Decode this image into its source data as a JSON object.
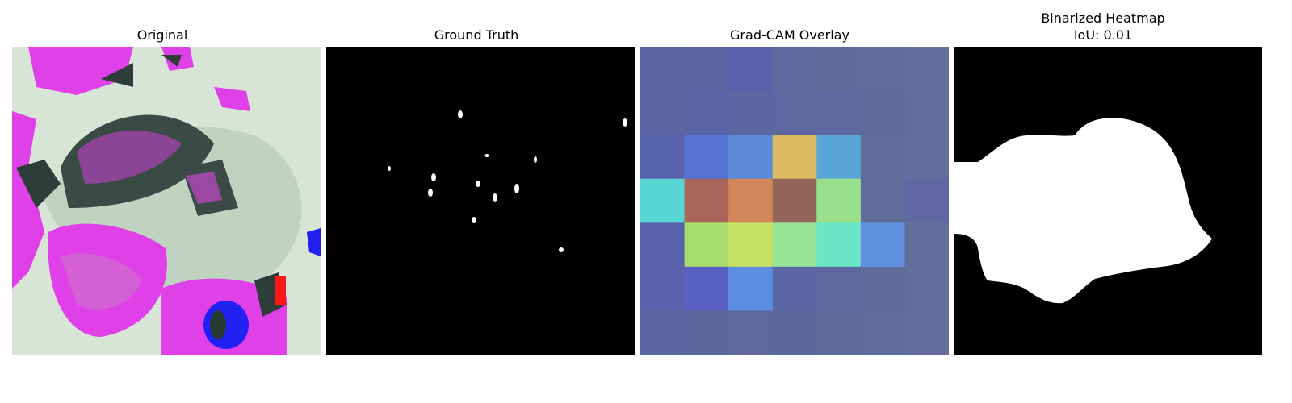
{
  "panels": [
    {
      "title": "Original"
    },
    {
      "title": "Ground Truth"
    },
    {
      "title": "Grad-CAM Overlay"
    },
    {
      "title_line1": "Binarized Heatmap",
      "title_line2": "IoU: 0.01"
    }
  ],
  "colors": {
    "background": "#ffffff",
    "mask_black": "#000000",
    "mask_white": "#ffffff",
    "magenta": "#e040e8",
    "leaf_green": "#cfe0cf",
    "dark_leaf": "#2f3d3a",
    "blue": "#2020f0"
  },
  "gradcam_grid": {
    "rows": 7,
    "cols": 7,
    "cells": [
      [
        "#5a66a0",
        "#5a65a2",
        "#5961ad",
        "#5c6a9d",
        "#5e6c9b",
        "#5f6d9b",
        "#626f9d"
      ],
      [
        "#5a65a2",
        "#5965a6",
        "#5b67a2",
        "#5c689f",
        "#5c689f",
        "#5e6b9d",
        "#626f9d"
      ],
      [
        "#5863af",
        "#5673d4",
        "#5a8ad9",
        "#d9ba5e",
        "#5aa6d9",
        "#5f6d9b",
        "#626f9d"
      ],
      [
        "#58d6d4",
        "#a9655a",
        "#d2865a",
        "#946659",
        "#99e08c",
        "#5f6d9b",
        "#5f68a3"
      ],
      [
        "#5962ad",
        "#a7dd6a",
        "#c6e062",
        "#98e497",
        "#6be6c4",
        "#6091e0",
        "#626f9d"
      ],
      [
        "#5962ad",
        "#5962c4",
        "#5b8ee2",
        "#5a67a4",
        "#5c689f",
        "#5e6b9d",
        "#626f9d"
      ],
      [
        "#5a67a1",
        "#5a679f",
        "#5c689f",
        "#5b679f",
        "#5c6a9c",
        "#5f6d9b",
        "#626f9d"
      ]
    ]
  }
}
